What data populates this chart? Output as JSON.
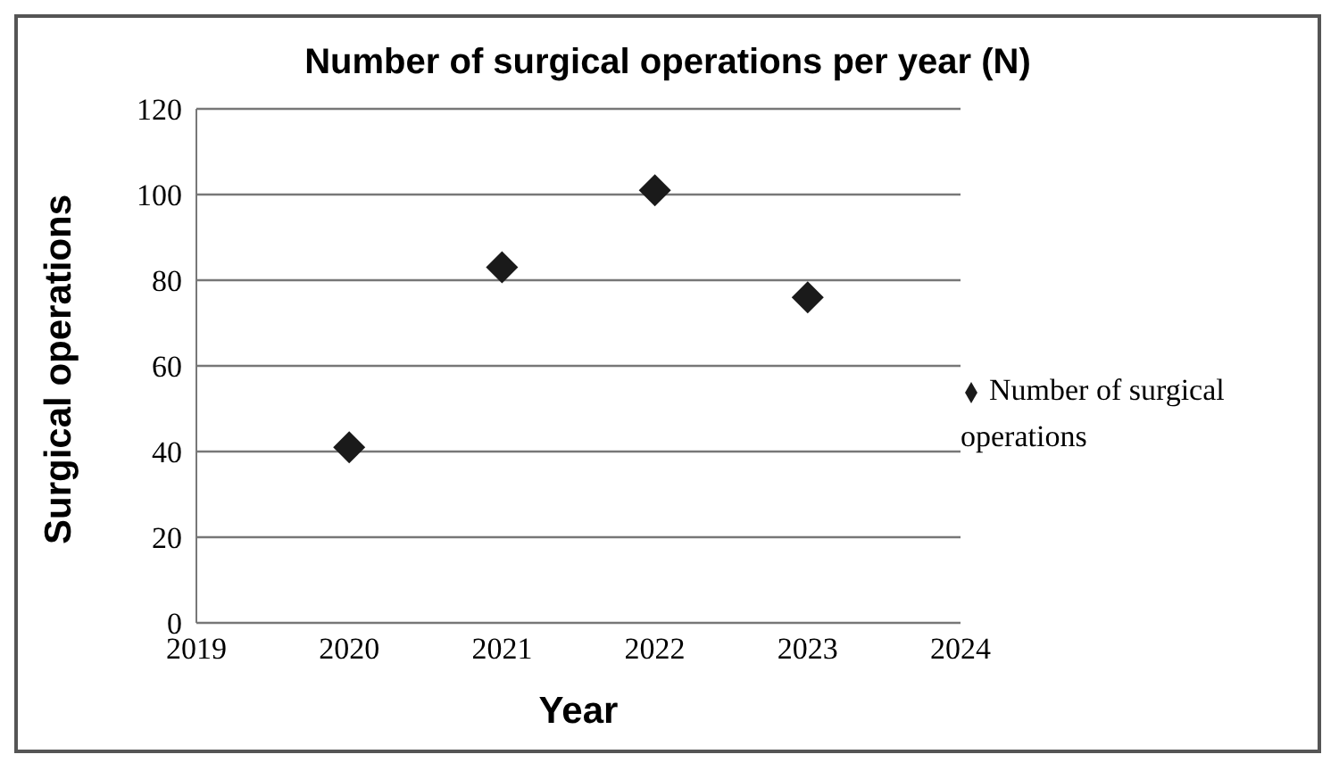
{
  "chart_data": {
    "type": "scatter",
    "title": "Number of surgical operations per year (N)",
    "xlabel": "Year",
    "ylabel": "Surgical operations",
    "x": [
      2020,
      2021,
      2022,
      2023
    ],
    "series": [
      {
        "name": "Number of surgical operations",
        "color": "#1a1a1a",
        "values": [
          41,
          83,
          101,
          76
        ]
      }
    ],
    "xlim": [
      2019,
      2024
    ],
    "xticks": [
      2019,
      2020,
      2021,
      2022,
      2023,
      2024
    ],
    "ylim": [
      0,
      120
    ],
    "yticks": [
      0,
      20,
      40,
      60,
      80,
      100,
      120
    ],
    "grid": "y",
    "legend": "right",
    "marker": "diamond"
  }
}
